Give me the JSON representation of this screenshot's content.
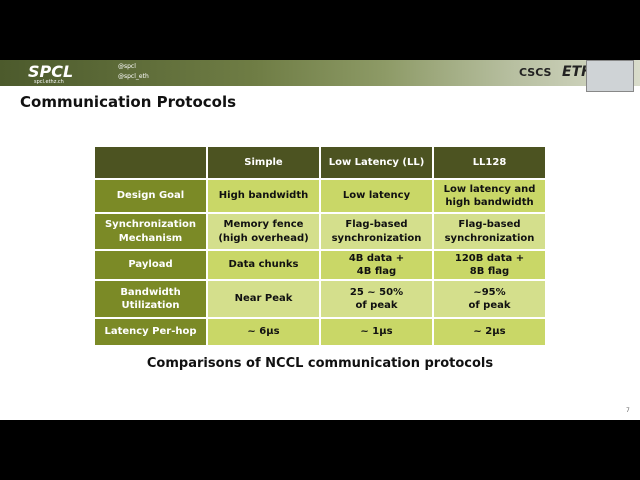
{
  "header": {
    "logo": "SPCL",
    "site": "spcl.ethz.ch",
    "handles": [
      "@spcl",
      "@spcl_eth"
    ],
    "partners": [
      "CSCS",
      "ETH"
    ]
  },
  "slide": {
    "title": "Communication Protocols",
    "table": {
      "columns": [
        "",
        "Simple",
        "Low Latency (LL)",
        "LL128"
      ],
      "rows": [
        [
          "Design Goal",
          "High bandwidth",
          "Low latency",
          "Low latency and\nhigh bandwidth"
        ],
        [
          "Synchronization\nMechanism",
          "Memory fence\n(high overhead)",
          "Flag-based\nsynchronization",
          "Flag-based\nsynchronization"
        ],
        [
          "Payload",
          "Data chunks",
          "4B data +\n4B flag",
          "120B data +\n8B flag"
        ],
        [
          "Bandwidth\nUtilization",
          "Near Peak",
          "25 ~ 50%\nof peak",
          "~95%\nof peak"
        ],
        [
          "Latency Per-hop",
          "~ 6µs",
          "~ 1µs",
          "~ 2µs"
        ]
      ]
    },
    "caption": "Comparisons of NCCL communication protocols",
    "page_number": "7"
  }
}
